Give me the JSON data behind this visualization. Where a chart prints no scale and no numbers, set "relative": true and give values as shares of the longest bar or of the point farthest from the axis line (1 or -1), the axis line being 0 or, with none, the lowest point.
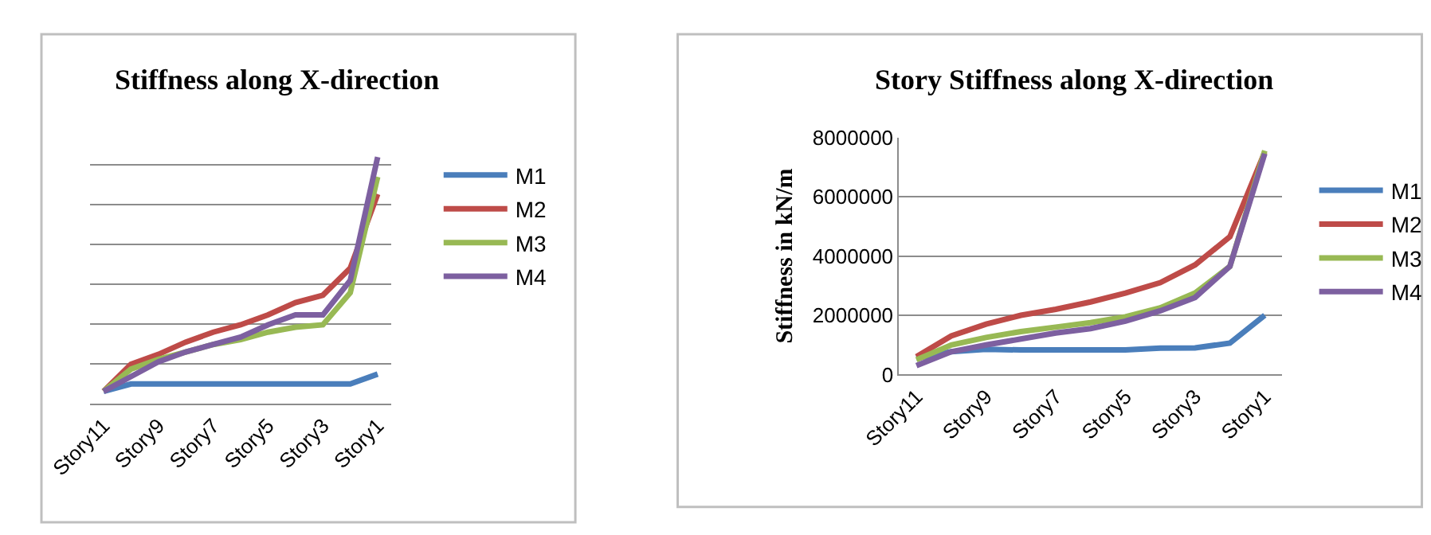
{
  "chart_data": [
    {
      "type": "line",
      "title": "Stiffness along X-direction",
      "relative": true,
      "tick_labels": "x",
      "grid": "y",
      "legend": "right",
      "marker": "none",
      "categories": [
        "Story11",
        null,
        "Story9",
        null,
        "Story7",
        null,
        "Story5",
        null,
        "Story3",
        null,
        "Story1"
      ],
      "series": [
        {
          "name": "M1",
          "color": "#4a7ebb",
          "values": [
            0.05,
            0.08,
            0.08,
            0.08,
            0.08,
            0.08,
            0.08,
            0.08,
            0.08,
            0.08,
            0.12
          ]
        },
        {
          "name": "M2",
          "color": "#be4b48",
          "values": [
            0.05,
            0.16,
            0.2,
            0.25,
            0.29,
            0.32,
            0.36,
            0.41,
            0.44,
            0.55,
            0.85
          ]
        },
        {
          "name": "M3",
          "color": "#98b954",
          "values": [
            0.05,
            0.14,
            0.18,
            0.21,
            0.24,
            0.26,
            0.29,
            0.31,
            0.32,
            0.45,
            0.92
          ]
        },
        {
          "name": "M4",
          "color": "#7d60a0",
          "values": [
            0.05,
            0.11,
            0.17,
            0.21,
            0.24,
            0.27,
            0.32,
            0.36,
            0.36,
            0.5,
            1
          ]
        }
      ]
    },
    {
      "type": "line",
      "title": "Story Stiffness along X-direction",
      "ylabel": "Stiffness in kN/m",
      "grid": "y",
      "legend": "right",
      "marker": "none",
      "categories": [
        "Story11",
        null,
        "Story9",
        null,
        "Story7",
        null,
        "Story5",
        null,
        "Story3",
        null,
        "Story1"
      ],
      "ylim": [
        0,
        8000000
      ],
      "yticks": [
        0,
        2000000,
        4000000,
        6000000,
        8000000
      ],
      "series": [
        {
          "name": "M1",
          "color": "#4a7ebb",
          "values": [
            550000,
            770000,
            850000,
            830000,
            830000,
            830000,
            830000,
            890000,
            900000,
            1060000,
            2000000
          ]
        },
        {
          "name": "M2",
          "color": "#be4b48",
          "values": [
            600000,
            1300000,
            1700000,
            2000000,
            2200000,
            2450000,
            2750000,
            3100000,
            3700000,
            4650000,
            7500000
          ]
        },
        {
          "name": "M3",
          "color": "#98b954",
          "values": [
            500000,
            1000000,
            1250000,
            1450000,
            1600000,
            1750000,
            1950000,
            2250000,
            2750000,
            3650000,
            7550000
          ]
        },
        {
          "name": "M4",
          "color": "#7d60a0",
          "values": [
            300000,
            770000,
            1000000,
            1200000,
            1400000,
            1550000,
            1800000,
            2150000,
            2600000,
            3650000,
            7450000
          ]
        }
      ]
    }
  ]
}
